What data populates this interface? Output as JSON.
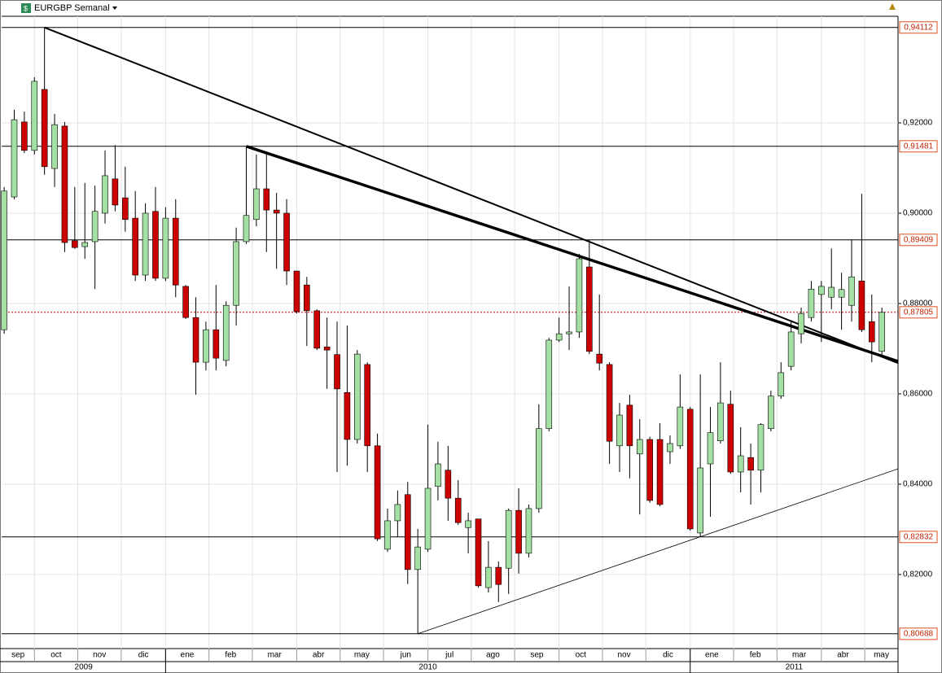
{
  "chart_data": {
    "type": "candlestick",
    "title": "EURGBP Semanal",
    "open": [
      0.8742,
      0.9036,
      0.9202,
      0.9139,
      0.9274,
      0.9099,
      0.9193,
      0.8939,
      0.8926,
      0.8937,
      0.9,
      0.9076,
      0.9034,
      0.8989,
      0.8863,
      0.9004,
      0.8856,
      0.8989,
      0.8838,
      0.8769,
      0.867,
      0.8742,
      0.8674,
      0.8796,
      0.8937,
      0.8986,
      0.9054,
      0.9007,
      0.9,
      0.8872,
      0.8841,
      0.8784,
      0.8704,
      0.8687,
      0.8603,
      0.8499,
      0.8665,
      0.8485,
      0.8256,
      0.8319,
      0.8377,
      0.8211,
      0.8256,
      0.8395,
      0.8431,
      0.8369,
      0.8304,
      0.8323,
      0.8171,
      0.8216,
      0.8214,
      0.8342,
      0.8247,
      0.8346,
      0.8523,
      0.8719,
      0.8733,
      0.8737,
      0.8881,
      0.8688,
      0.8665,
      0.8485,
      0.8575,
      0.8467,
      0.8499,
      0.8499,
      0.8472,
      0.8485,
      0.8566,
      0.8292,
      0.8445,
      0.8496,
      0.8577,
      0.8427,
      0.8459,
      0.8431,
      0.8523,
      0.8595,
      0.8661,
      0.8733,
      0.8769,
      0.882,
      0.8814,
      0.8814,
      0.8796,
      0.885,
      0.876,
      0.8694
    ],
    "high": [
      0.9058,
      0.9229,
      0.9225,
      0.9301,
      0.94112,
      0.922,
      0.9202,
      0.9058,
      0.9067,
      0.9061,
      0.9139,
      0.9151,
      0.9103,
      0.9049,
      0.9022,
      0.9058,
      0.9013,
      0.9031,
      0.8841,
      0.8814,
      0.876,
      0.8841,
      0.8805,
      0.8968,
      0.91481,
      0.913,
      0.913,
      0.9045,
      0.9031,
      0.8872,
      0.8859,
      0.8787,
      0.8769,
      0.876,
      0.8751,
      0.8697,
      0.867,
      0.8512,
      0.8346,
      0.8386,
      0.8405,
      0.8301,
      0.8532,
      0.8494,
      0.8485,
      0.8409,
      0.8337,
      0.8323,
      0.8274,
      0.8229,
      0.8346,
      0.8391,
      0.8355,
      0.8577,
      0.8724,
      0.8769,
      0.8838,
      0.891,
      0.8941,
      0.882,
      0.867,
      0.858,
      0.8598,
      0.8544,
      0.8505,
      0.8535,
      0.8508,
      0.8643,
      0.8571,
      0.8643,
      0.8571,
      0.867,
      0.8607,
      0.8526,
      0.849,
      0.8535,
      0.8607,
      0.867,
      0.876,
      0.8791,
      0.885,
      0.885,
      0.8922,
      0.8868,
      0.8941,
      0.9043,
      0.882,
      0.8791
    ],
    "low": [
      0.8733,
      0.9031,
      0.9133,
      0.913,
      0.9085,
      0.9058,
      0.8914,
      0.8921,
      0.8899,
      0.8832,
      0.8977,
      0.9004,
      0.8959,
      0.885,
      0.885,
      0.885,
      0.885,
      0.8814,
      0.8766,
      0.8598,
      0.8652,
      0.8652,
      0.8661,
      0.8751,
      0.8932,
      0.8971,
      0.8914,
      0.8877,
      0.8841,
      0.8778,
      0.8706,
      0.8697,
      0.8611,
      0.8427,
      0.8441,
      0.849,
      0.8427,
      0.8274,
      0.825,
      0.8283,
      0.8179,
      0.80688,
      0.825,
      0.8364,
      0.8319,
      0.831,
      0.8247,
      0.8171,
      0.816,
      0.8139,
      0.8157,
      0.8202,
      0.8238,
      0.8337,
      0.8517,
      0.8715,
      0.8697,
      0.8724,
      0.8688,
      0.8652,
      0.8445,
      0.8427,
      0.8413,
      0.8333,
      0.8359,
      0.8351,
      0.8445,
      0.8478,
      0.8297,
      0.8283,
      0.8328,
      0.849,
      0.8423,
      0.8382,
      0.8355,
      0.8382,
      0.8517,
      0.8589,
      0.8652,
      0.8712,
      0.876,
      0.8715,
      0.8787,
      0.8742,
      0.876,
      0.8737,
      0.867,
      0.8683
    ],
    "close": [
      0.9049,
      0.9207,
      0.9139,
      0.9292,
      0.9103,
      0.9196,
      0.8935,
      0.8924,
      0.8935,
      0.9004,
      0.9083,
      0.9018,
      0.8986,
      0.8863,
      0.9,
      0.8856,
      0.8989,
      0.8841,
      0.8769,
      0.867,
      0.8742,
      0.8679,
      0.8796,
      0.8937,
      0.8995,
      0.9054,
      0.9007,
      0.9,
      0.8872,
      0.8782,
      0.8784,
      0.8701,
      0.8697,
      0.8611,
      0.8499,
      0.8688,
      0.8485,
      0.8279,
      0.8319,
      0.8355,
      0.8211,
      0.8261,
      0.8391,
      0.8445,
      0.8369,
      0.8315,
      0.8319,
      0.8175,
      0.8216,
      0.8178,
      0.8342,
      0.8247,
      0.8346,
      0.8523,
      0.8719,
      0.8733,
      0.8737,
      0.8899,
      0.8694,
      0.8668,
      0.8495,
      0.8553,
      0.8485,
      0.8499,
      0.8364,
      0.8355,
      0.849,
      0.8571,
      0.8301,
      0.8436,
      0.8514,
      0.858,
      0.8427,
      0.8463,
      0.8431,
      0.8532,
      0.8595,
      0.8647,
      0.8737,
      0.8778,
      0.8832,
      0.8838,
      0.8836,
      0.8831,
      0.8859,
      0.8742,
      0.8715,
      0.87805
    ],
    "up_color": "#a4e0a4",
    "down_color": "#cc0000",
    "xlim": [
      -0.25,
      88.6
    ],
    "xticks": [
      {
        "value": -0.25,
        "label": "sep"
      },
      {
        "value": 3,
        "label": "oct"
      },
      {
        "value": 7.3,
        "label": "nov"
      },
      {
        "value": 11.6,
        "label": "dic"
      },
      {
        "value": 16,
        "label": "ene"
      },
      {
        "value": 20.3,
        "label": "feb"
      },
      {
        "value": 24.6,
        "label": "mar"
      },
      {
        "value": 29,
        "label": "abr"
      },
      {
        "value": 33.3,
        "label": "may"
      },
      {
        "value": 37.6,
        "label": "jun"
      },
      {
        "value": 42,
        "label": "jul"
      },
      {
        "value": 46.3,
        "label": "ago"
      },
      {
        "value": 50.6,
        "label": "sep"
      },
      {
        "value": 55,
        "label": "oct"
      },
      {
        "value": 59.3,
        "label": "nov"
      },
      {
        "value": 63.6,
        "label": "dic"
      },
      {
        "value": 68,
        "label": "ene"
      },
      {
        "value": 72.3,
        "label": "feb"
      },
      {
        "value": 76.6,
        "label": "mar"
      },
      {
        "value": 81,
        "label": "abr"
      },
      {
        "value": 85.3,
        "label": "may"
      }
    ],
    "years": [
      {
        "value": -0.25,
        "label": "2009"
      },
      {
        "value": 16,
        "label": "2010"
      },
      {
        "value": 68,
        "label": "2011"
      }
    ],
    "ylim": [
      0.8036,
      0.9436
    ],
    "yticks": [
      {
        "value": 0.82,
        "label": "0,82000"
      },
      {
        "value": 0.84,
        "label": "0,84000"
      },
      {
        "value": 0.86,
        "label": "0,86000"
      },
      {
        "value": 0.88,
        "label": "0,88000"
      },
      {
        "value": 0.9,
        "label": "0,90000"
      },
      {
        "value": 0.92,
        "label": "0,92000"
      }
    ],
    "levels": [
      {
        "value": 0.94112,
        "label": "0,94112"
      },
      {
        "value": 0.91481,
        "label": "0,91481"
      },
      {
        "value": 0.89409,
        "label": "0,89409"
      },
      {
        "value": 0.87805,
        "label": "0,87805",
        "style": "dotted",
        "color": "#cc0000"
      },
      {
        "value": 0.82832,
        "label": "0,82832"
      },
      {
        "value": 0.80688,
        "label": "0,80688"
      }
    ],
    "trendlines": [
      {
        "x": [
          4,
          88.6
        ],
        "y": [
          0.94112,
          0.8668
        ],
        "width": 2
      },
      {
        "x": [
          24,
          88.6
        ],
        "y": [
          0.91481,
          0.8672
        ],
        "width": 3.5
      },
      {
        "x": [
          41,
          88.6
        ],
        "y": [
          0.80688,
          0.8434
        ],
        "width": 0.8
      }
    ],
    "grid": true
  }
}
